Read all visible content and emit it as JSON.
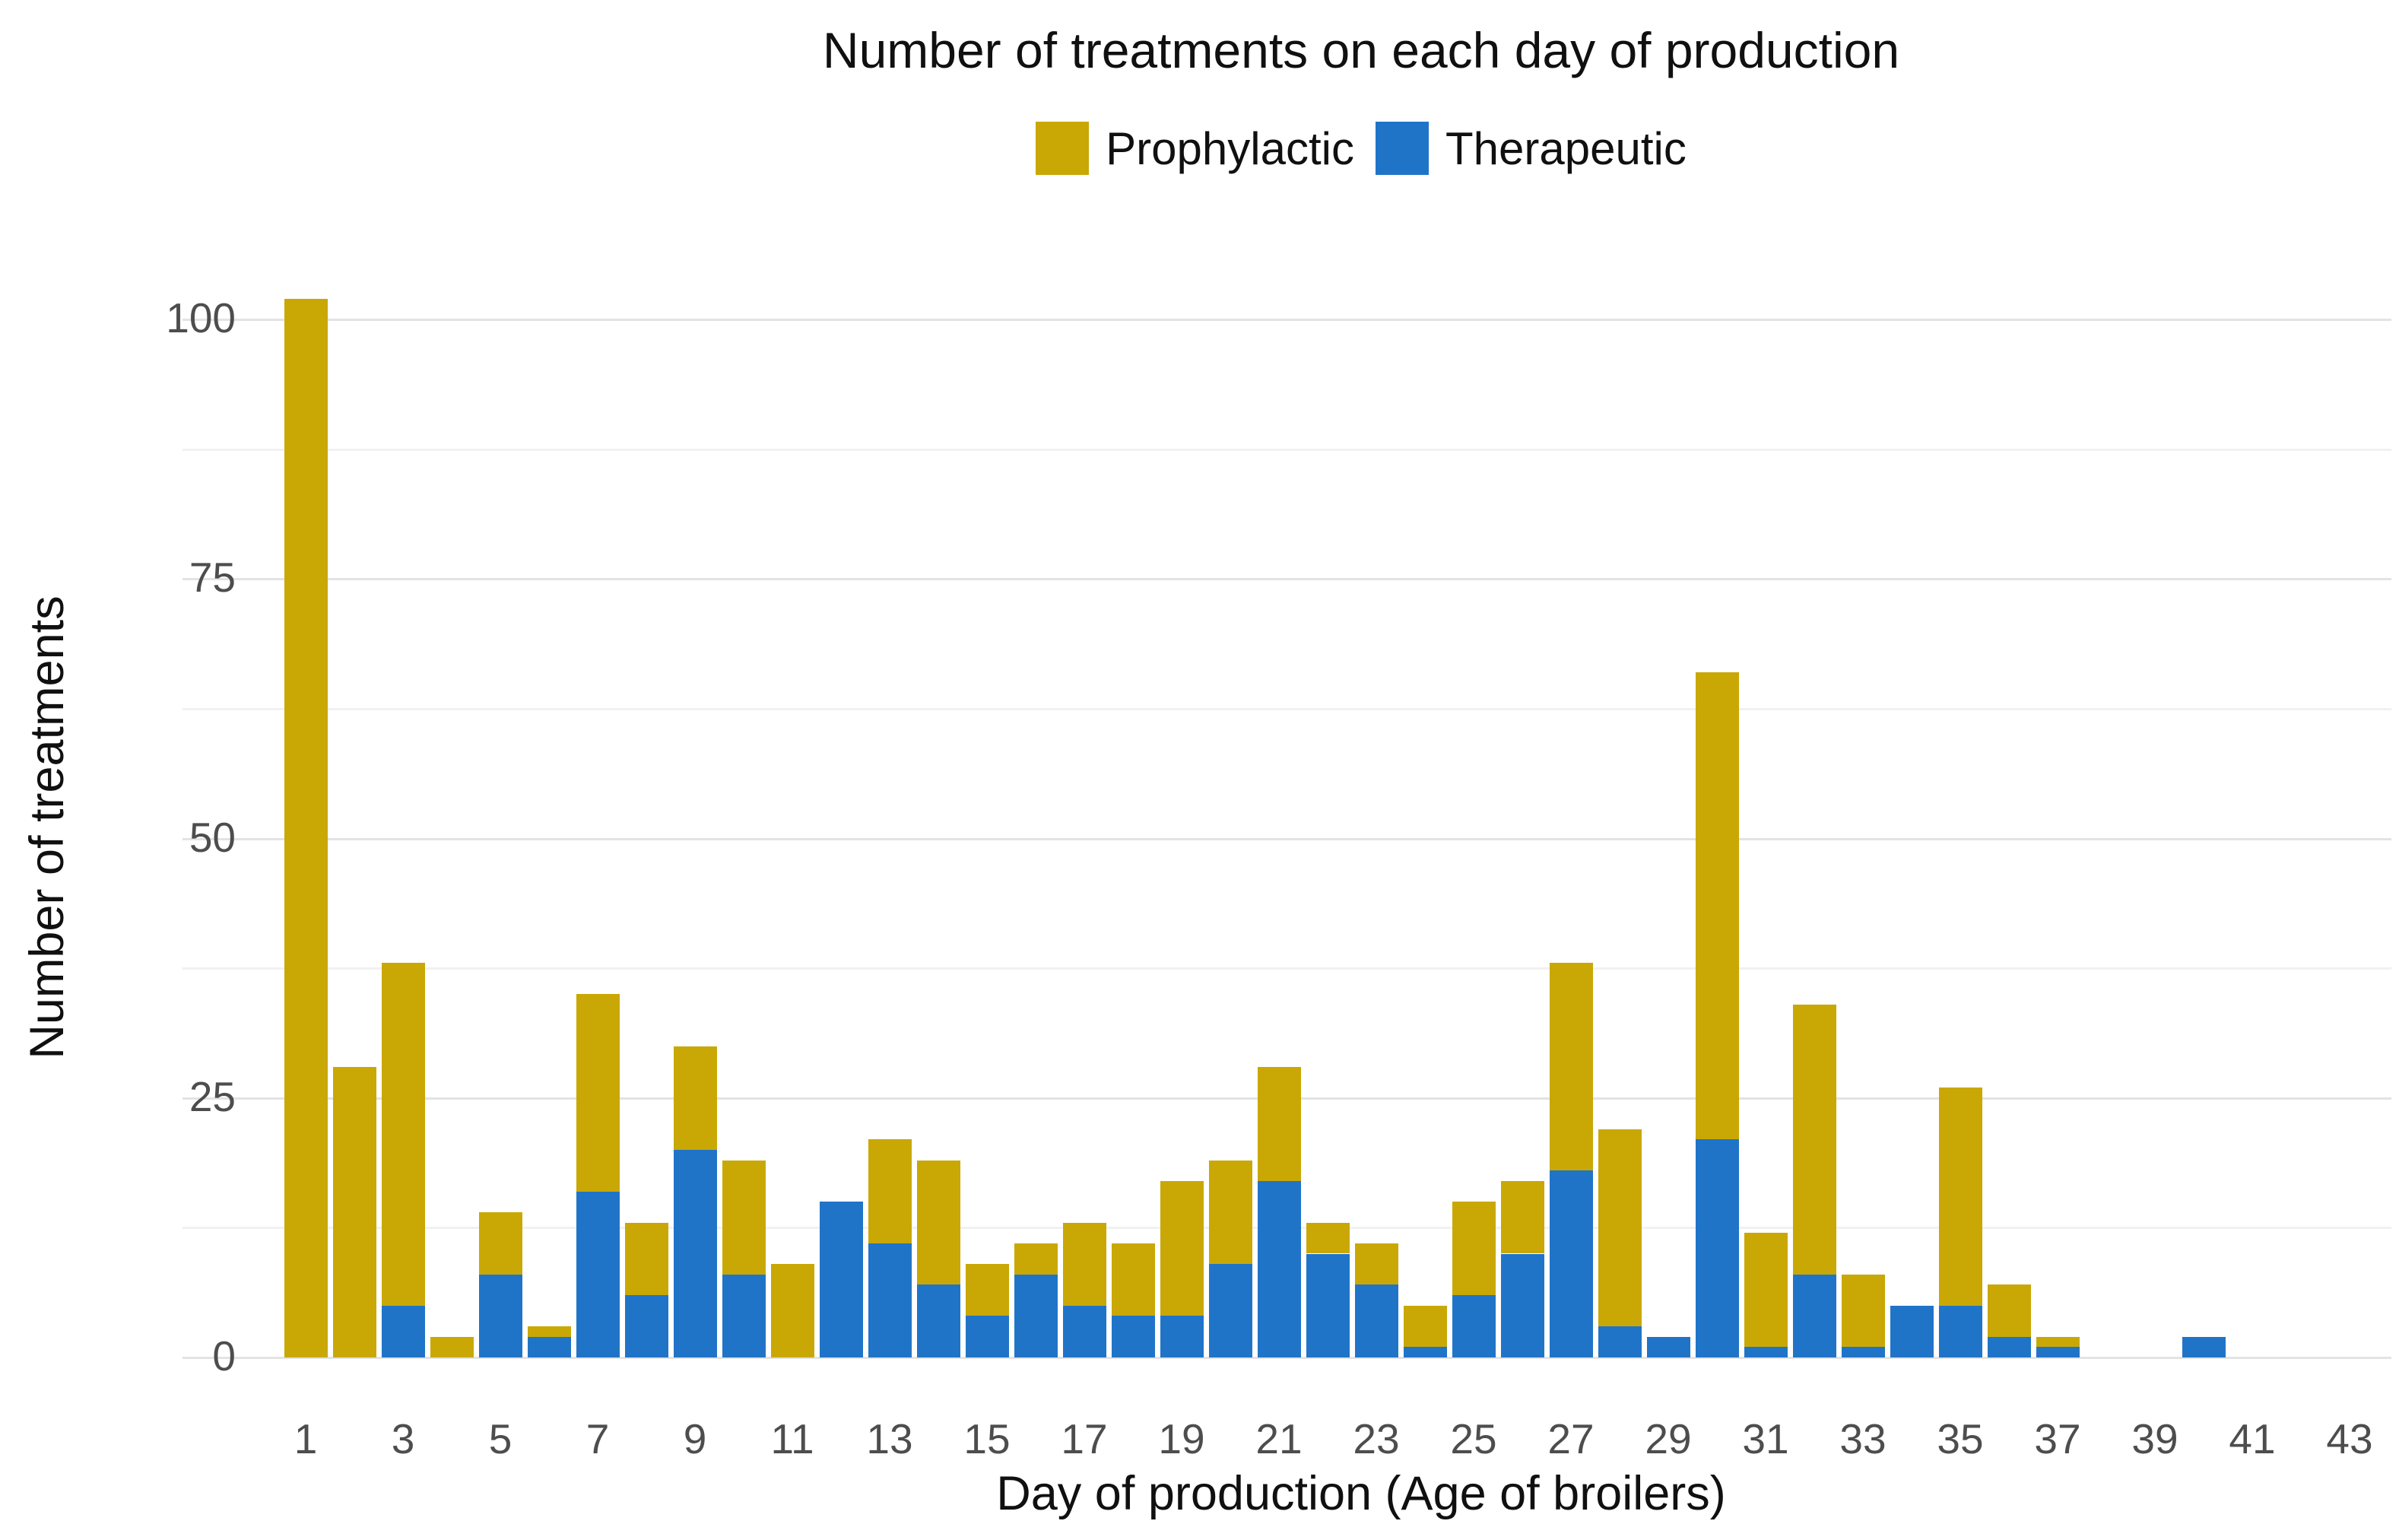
{
  "chart_data": {
    "type": "bar",
    "stacked": true,
    "title": "Number of treatments on each day of production",
    "xlabel": "Day of production (Age of broilers)",
    "ylabel": "Number of treatments",
    "x": [
      1,
      2,
      3,
      4,
      5,
      6,
      7,
      8,
      9,
      10,
      11,
      12,
      13,
      14,
      15,
      16,
      17,
      18,
      19,
      20,
      21,
      22,
      23,
      24,
      25,
      26,
      27,
      28,
      29,
      30,
      31,
      32,
      33,
      34,
      35,
      36,
      37,
      38,
      39,
      40,
      41,
      42,
      43
    ],
    "series": [
      {
        "name": "Prophylactic",
        "color": "#c9a805",
        "values": [
          102,
          28,
          33,
          2,
          6,
          1,
          19,
          7,
          10,
          11,
          9,
          0,
          10,
          12,
          5,
          3,
          8,
          7,
          13,
          10,
          11,
          3,
          4,
          4,
          9,
          7,
          20,
          19,
          0,
          45,
          11,
          26,
          7,
          0,
          21,
          5,
          1,
          0,
          0,
          0,
          0,
          0,
          0
        ]
      },
      {
        "name": "Therapeutic",
        "color": "#2074c8",
        "values": [
          0,
          0,
          5,
          0,
          8,
          2,
          16,
          6,
          20,
          8,
          0,
          15,
          11,
          7,
          4,
          8,
          5,
          4,
          4,
          9,
          17,
          10,
          7,
          1,
          6,
          10,
          18,
          3,
          2,
          21,
          1,
          8,
          1,
          5,
          5,
          2,
          1,
          0,
          0,
          2,
          0,
          0,
          0
        ]
      }
    ],
    "ylim": [
      0,
      103
    ],
    "y_major_ticks": [
      0,
      25,
      50,
      75,
      100
    ],
    "y_minor_ticks": [
      12.5,
      37.5,
      62.5,
      87.5
    ],
    "x_tick_labels": [
      1,
      3,
      5,
      7,
      9,
      11,
      13,
      15,
      17,
      19,
      21,
      23,
      25,
      27,
      29,
      31,
      33,
      35,
      37,
      39,
      41,
      43
    ],
    "grid": "horizontal-only, light gray on white",
    "legend_position": "top-center",
    "tick_color": "#4d4d4d",
    "gridline_major_color": "#e3e3e3",
    "gridline_minor_color": "#f1f1f1"
  }
}
